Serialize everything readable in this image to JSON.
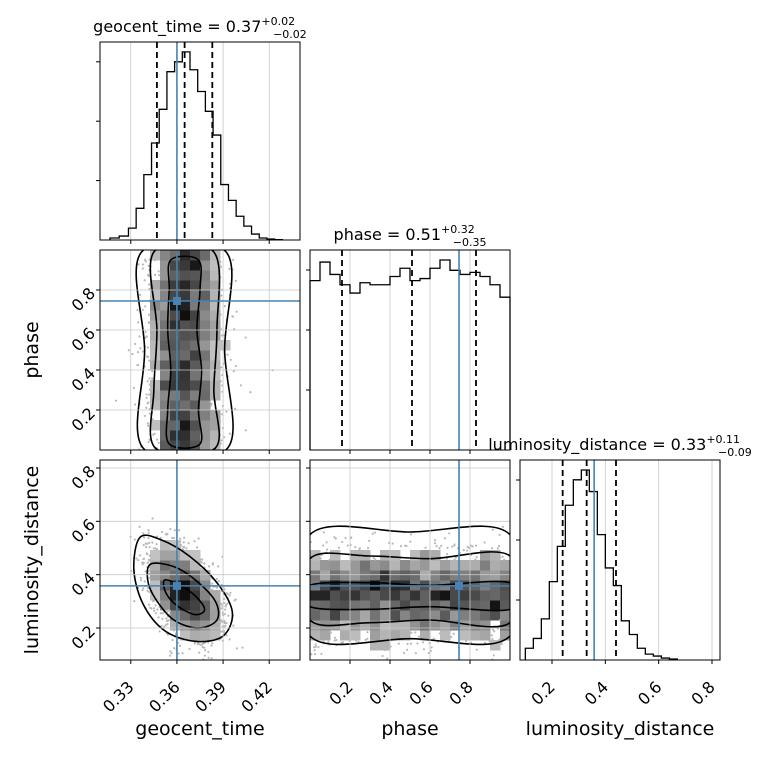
{
  "chart_data": {
    "type": "corner",
    "parameters": [
      "geocent_time",
      "phase",
      "luminosity_distance"
    ],
    "truth": {
      "geocent_time": 0.36,
      "phase": 0.745,
      "luminosity_distance": 0.358
    },
    "colors": {
      "truth": "#4682b4",
      "hist": "#000000",
      "grid": "#c8c8c8"
    },
    "titles": [
      {
        "name": "geocent_time = 0.37",
        "plus": "+0.02",
        "minus": "−0.02"
      },
      {
        "name": "phase = 0.51",
        "plus": "+0.32",
        "minus": "−0.35"
      },
      {
        "name": "luminosity_distance = 0.33",
        "plus": "+0.11",
        "minus": "−0.09"
      }
    ],
    "axes": {
      "geocent_time": {
        "range": [
          0.31,
          0.44
        ],
        "ticks": [
          0.33,
          0.36,
          0.39,
          0.42
        ],
        "tick_labels": [
          "0.33",
          "0.36",
          "0.39",
          "0.42"
        ],
        "quantiles": [
          0.347,
          0.365,
          0.383
        ]
      },
      "phase": {
        "range": [
          0.0,
          1.0
        ],
        "ticks": [
          0.2,
          0.4,
          0.6,
          0.8
        ],
        "tick_labels": [
          "0.2",
          "0.4",
          "0.6",
          "0.8"
        ],
        "quantiles": [
          0.16,
          0.51,
          0.83
        ]
      },
      "luminosity_distance": {
        "range": [
          0.08,
          0.83
        ],
        "ticks": [
          0.2,
          0.4,
          0.6,
          0.8
        ],
        "tick_labels": [
          "0.2",
          "0.4",
          "0.6",
          "0.8"
        ],
        "quantiles": [
          0.24,
          0.33,
          0.44
        ]
      }
    },
    "hist_geocent_time": {
      "edges": [
        0.3165,
        0.3225,
        0.3285,
        0.3335,
        0.3385,
        0.3435,
        0.3485,
        0.3535,
        0.3585,
        0.3635,
        0.3685,
        0.3735,
        0.3785,
        0.3835,
        0.3885,
        0.3935,
        0.3985,
        0.4035,
        0.4085,
        0.4135,
        0.4185,
        0.4235,
        0.4285
      ],
      "values": [
        0.01,
        0.02,
        0.06,
        0.16,
        0.33,
        0.49,
        0.66,
        0.85,
        0.9,
        0.95,
        0.86,
        0.75,
        0.65,
        0.53,
        0.28,
        0.2,
        0.12,
        0.07,
        0.03,
        0.01,
        0.005,
        0.002
      ]
    },
    "hist_phase": {
      "edges": [
        0.0,
        0.05,
        0.1,
        0.15,
        0.2,
        0.25,
        0.3,
        0.35,
        0.4,
        0.45,
        0.5,
        0.55,
        0.6,
        0.65,
        0.7,
        0.75,
        0.8,
        0.85,
        0.9,
        0.95,
        1.0
      ],
      "values": [
        0.82,
        0.91,
        0.85,
        0.8,
        0.76,
        0.81,
        0.8,
        0.8,
        0.84,
        0.88,
        0.82,
        0.83,
        0.88,
        0.92,
        0.87,
        0.85,
        0.86,
        0.84,
        0.8,
        0.74
      ]
    },
    "hist_luminosity_distance": {
      "edges": [
        0.1,
        0.13,
        0.16,
        0.19,
        0.22,
        0.25,
        0.28,
        0.31,
        0.34,
        0.37,
        0.4,
        0.43,
        0.46,
        0.49,
        0.52,
        0.55,
        0.58,
        0.61,
        0.64,
        0.67
      ],
      "values": [
        0.06,
        0.11,
        0.21,
        0.4,
        0.58,
        0.79,
        0.92,
        0.97,
        0.86,
        0.64,
        0.47,
        0.38,
        0.2,
        0.13,
        0.06,
        0.03,
        0.02,
        0.01,
        0.005
      ]
    },
    "contours_phase_vs_geocent": [
      {
        "level": 0.5,
        "points": [
          [
            0.355,
            0.03
          ],
          [
            0.354,
            0.2
          ],
          [
            0.356,
            0.4
          ],
          [
            0.354,
            0.6
          ],
          [
            0.355,
            0.8
          ],
          [
            0.356,
            0.95
          ],
          [
            0.374,
            0.95
          ],
          [
            0.375,
            0.8
          ],
          [
            0.373,
            0.6
          ],
          [
            0.376,
            0.4
          ],
          [
            0.374,
            0.2
          ],
          [
            0.375,
            0.03
          ]
        ]
      },
      {
        "level": 0.86,
        "points": [
          [
            0.346,
            0.01
          ],
          [
            0.345,
            0.3
          ],
          [
            0.347,
            0.6
          ],
          [
            0.345,
            0.99
          ],
          [
            0.384,
            0.99
          ],
          [
            0.386,
            0.6
          ],
          [
            0.384,
            0.3
          ],
          [
            0.385,
            0.01
          ]
        ]
      },
      {
        "level": 0.99,
        "points": [
          [
            0.338,
            0.01
          ],
          [
            0.339,
            0.5
          ],
          [
            0.337,
            0.99
          ],
          [
            0.392,
            0.99
          ],
          [
            0.391,
            0.5
          ],
          [
            0.393,
            0.01
          ]
        ]
      }
    ],
    "contours_lumdist_vs_geocent": [
      {
        "level": 0.5,
        "points": [
          [
            0.352,
            0.38
          ],
          [
            0.362,
            0.36
          ],
          [
            0.372,
            0.32
          ],
          [
            0.378,
            0.27
          ],
          [
            0.372,
            0.25
          ],
          [
            0.361,
            0.28
          ],
          [
            0.353,
            0.33
          ]
        ]
      },
      {
        "level": 0.86,
        "points": [
          [
            0.343,
            0.44
          ],
          [
            0.358,
            0.43
          ],
          [
            0.372,
            0.38
          ],
          [
            0.385,
            0.3
          ],
          [
            0.386,
            0.23
          ],
          [
            0.374,
            0.2
          ],
          [
            0.358,
            0.23
          ],
          [
            0.346,
            0.31
          ],
          [
            0.341,
            0.38
          ]
        ]
      },
      {
        "level": 0.99,
        "points": [
          [
            0.336,
            0.54
          ],
          [
            0.35,
            0.53
          ],
          [
            0.368,
            0.47
          ],
          [
            0.386,
            0.37
          ],
          [
            0.396,
            0.26
          ],
          [
            0.39,
            0.17
          ],
          [
            0.372,
            0.15
          ],
          [
            0.352,
            0.19
          ],
          [
            0.338,
            0.29
          ],
          [
            0.332,
            0.42
          ]
        ]
      }
    ],
    "contours_lumdist_vs_phase": [
      {
        "level": 0.5,
        "points": [
          [
            0.0,
            0.36
          ],
          [
            0.3,
            0.37
          ],
          [
            0.6,
            0.36
          ],
          [
            1.0,
            0.37
          ],
          [
            1.0,
            0.27
          ],
          [
            0.6,
            0.28
          ],
          [
            0.3,
            0.27
          ],
          [
            0.0,
            0.28
          ]
        ]
      },
      {
        "level": 0.86,
        "points": [
          [
            0.0,
            0.46
          ],
          [
            0.3,
            0.47
          ],
          [
            0.6,
            0.46
          ],
          [
            1.0,
            0.47
          ],
          [
            1.0,
            0.22
          ],
          [
            0.6,
            0.23
          ],
          [
            0.3,
            0.22
          ],
          [
            0.0,
            0.23
          ]
        ]
      },
      {
        "level": 0.99,
        "points": [
          [
            0.0,
            0.55
          ],
          [
            0.5,
            0.56
          ],
          [
            1.0,
            0.55
          ],
          [
            1.0,
            0.17
          ],
          [
            0.5,
            0.16
          ],
          [
            0.0,
            0.17
          ]
        ]
      }
    ]
  }
}
